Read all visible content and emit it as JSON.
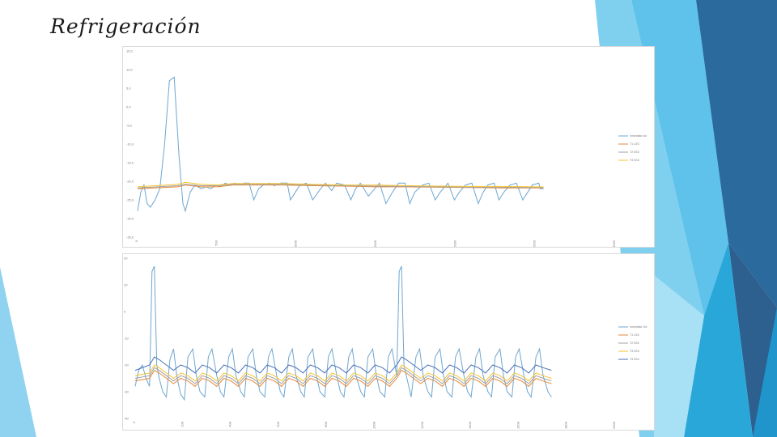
{
  "slide": {
    "title": "Refrigeración",
    "colors": {
      "deco_light": "#7fd0ee",
      "deco_mid": "#2aa7d9",
      "deco_dark": "#2a6a9c",
      "deco_navy": "#2d5f8f"
    }
  },
  "chart_data": [
    {
      "type": "line",
      "title": "",
      "xlabel": "",
      "ylabel": "",
      "ylim": [
        -35,
        15
      ],
      "xlim": [
        0,
        3000
      ],
      "y_tick_labels": [
        "15,0",
        "10,0",
        "5,0",
        "0,0",
        "-5,0",
        "-10,0",
        "-15,0",
        "-20,0",
        "-25,0",
        "-30,0",
        "-35,0"
      ],
      "x_tick_labels": [
        "0",
        "500",
        "1000",
        "1500",
        "2000",
        "2500",
        "3000"
      ],
      "legend_position": "right",
      "legend": [
        "Inmediato sol",
        "T1 LSS",
        "T2 SS2",
        "T3 SS3"
      ],
      "grid": false,
      "series": [
        {
          "name": "Inmediato sol",
          "color": "#6fa6cf",
          "x": [
            0,
            20,
            40,
            60,
            80,
            110,
            140,
            170,
            200,
            230,
            260,
            285,
            300,
            330,
            360,
            400,
            430,
            460,
            490,
            520,
            550,
            580,
            610,
            640,
            670,
            700,
            730,
            760,
            790,
            830,
            860,
            900,
            940,
            960,
            990,
            1020,
            1060,
            1100,
            1150,
            1180,
            1220,
            1250,
            1300,
            1340,
            1370,
            1400,
            1450,
            1490,
            1520,
            1560,
            1600,
            1640,
            1680,
            1710,
            1740,
            1790,
            1830,
            1870,
            1900,
            1950,
            1990,
            2020,
            2060,
            2100,
            2140,
            2170,
            2200,
            2240,
            2270,
            2300,
            2340,
            2380,
            2420,
            2450,
            2480,
            2520,
            2530,
            2550
          ],
          "y": [
            -28,
            -23,
            -21,
            -26,
            -27,
            -25,
            -22,
            -10,
            7,
            8,
            -13,
            -26,
            -28,
            -23,
            -21,
            -22,
            -21.5,
            -22,
            -21,
            -21.5,
            -20.5,
            -21,
            -20.5,
            -21,
            -20.5,
            -20.5,
            -25,
            -22,
            -21,
            -20.5,
            -21.2,
            -20.5,
            -20.5,
            -25,
            -23,
            -21,
            -20.5,
            -25,
            -22,
            -20.5,
            -22.5,
            -20.5,
            -21,
            -25,
            -22,
            -20.5,
            -24,
            -22,
            -20.5,
            -26,
            -23,
            -20.5,
            -20.5,
            -26,
            -23,
            -21,
            -20.5,
            -25,
            -23,
            -20.5,
            -25,
            -23,
            -21,
            -20.5,
            -26,
            -23,
            -21,
            -20.5,
            -25,
            -23,
            -21,
            -20.5,
            -25,
            -23,
            -21,
            -20.5,
            -22,
            -22
          ]
        },
        {
          "name": "T1 LSS",
          "color": "#e58a3a",
          "x": [
            0,
            250,
            300,
            400,
            500,
            600,
            700,
            900,
            1100,
            1300,
            1500,
            1700,
            1900,
            2100,
            2300,
            2500,
            2550
          ],
          "y": [
            -22,
            -21.5,
            -21,
            -21.5,
            -21.5,
            -21,
            -21,
            -21,
            -21.2,
            -21.3,
            -21.5,
            -21.5,
            -21.6,
            -21.7,
            -21.8,
            -21.8,
            -21.8
          ]
        },
        {
          "name": "T2 SS2",
          "color": "#a0a0a0",
          "x": [
            0,
            250,
            300,
            400,
            500,
            600,
            700,
            900,
            1100,
            1300,
            1500,
            1700,
            1900,
            2100,
            2300,
            2500,
            2550
          ],
          "y": [
            -21.8,
            -21.2,
            -20.8,
            -21.2,
            -21.2,
            -20.8,
            -20.8,
            -20.8,
            -21,
            -21.2,
            -21.3,
            -21.4,
            -21.5,
            -21.6,
            -21.6,
            -21.7,
            -21.7
          ]
        },
        {
          "name": "T3 SS3",
          "color": "#f5c431",
          "x": [
            0,
            250,
            300,
            400,
            500,
            600,
            700,
            900,
            1100,
            1300,
            1500,
            1700,
            1900,
            2100,
            2300,
            2500,
            2550
          ],
          "y": [
            -21.5,
            -20.8,
            -20.3,
            -20.8,
            -21,
            -20.6,
            -20.6,
            -20.6,
            -20.8,
            -21,
            -21,
            -21.2,
            -21.3,
            -21.4,
            -21.4,
            -21.5,
            -21.5
          ]
        }
      ]
    },
    {
      "type": "line",
      "title": "",
      "xlabel": "",
      "ylabel": "",
      "ylim": [
        -40,
        20
      ],
      "xlim": [
        0,
        2000
      ],
      "y_tick_labels": [
        "20",
        "10",
        "0",
        "-10",
        "-20",
        "-30",
        "-40"
      ],
      "x_tick_labels": [
        "0",
        "200",
        "400",
        "600",
        "800",
        "1000",
        "1200",
        "1400",
        "1600",
        "1800",
        "2000"
      ],
      "legend_position": "right",
      "legend": [
        "Inmediato Sol",
        "T1 LSS",
        "T2 SS2",
        "T3 SS3",
        "T4 SS4"
      ],
      "grid": false,
      "series": [
        {
          "name": "Inmediato Sol",
          "color": "#6fa6cf",
          "x": [
            0,
            15,
            30,
            45,
            60,
            70,
            80,
            90,
            100,
            115,
            130,
            145,
            160,
            175,
            190,
            205,
            220,
            240,
            255,
            270,
            290,
            305,
            320,
            340,
            355,
            370,
            390,
            405,
            420,
            440,
            455,
            470,
            490,
            505,
            520,
            540,
            555,
            570,
            590,
            605,
            620,
            640,
            655,
            670,
            690,
            705,
            720,
            740,
            755,
            770,
            790,
            805,
            820,
            840,
            855,
            870,
            890,
            905,
            920,
            940,
            955,
            970,
            990,
            1005,
            1020,
            1040,
            1055,
            1070,
            1090,
            1100,
            1110,
            1120,
            1135,
            1150,
            1170,
            1185,
            1200,
            1220,
            1235,
            1250,
            1270,
            1285,
            1300,
            1320,
            1335,
            1350,
            1370,
            1385,
            1400,
            1420,
            1435,
            1450,
            1470,
            1485,
            1500,
            1520,
            1535,
            1550,
            1570,
            1585,
            1600,
            1620,
            1635,
            1650,
            1670,
            1685,
            1700,
            1720,
            1735
          ],
          "y": [
            -28,
            -22,
            -20,
            -25,
            -28,
            15,
            17,
            -20,
            -25,
            -30,
            -32,
            -18,
            -14,
            -25,
            -31,
            -33,
            -17,
            -14,
            -24,
            -30,
            -32,
            -17,
            -14,
            -24,
            -30,
            -32,
            -17,
            -14,
            -24,
            -30,
            -32,
            -17,
            -14,
            -24,
            -30,
            -32,
            -17,
            -14,
            -24,
            -30,
            -32,
            -17,
            -14,
            -24,
            -30,
            -32,
            -17,
            -14,
            -24,
            -30,
            -32,
            -17,
            -14,
            -24,
            -30,
            -32,
            -17,
            -14,
            -24,
            -30,
            -32,
            -17,
            -14,
            -24,
            -30,
            -32,
            -17,
            -14,
            -24,
            15,
            17,
            -20,
            -26,
            -32,
            -17,
            -14,
            -24,
            -30,
            -32,
            -17,
            -14,
            -24,
            -30,
            -32,
            -17,
            -14,
            -24,
            -30,
            -32,
            -17,
            -14,
            -24,
            -30,
            -32,
            -17,
            -14,
            -24,
            -30,
            -32,
            -17,
            -14,
            -24,
            -30,
            -32,
            -17,
            -14,
            -24,
            -30,
            -32
          ]
        },
        {
          "name": "T1 LSS",
          "color": "#e58a3a",
          "x": [
            0,
            60,
            80,
            100,
            130,
            160,
            190,
            220,
            250,
            280,
            310,
            340,
            370,
            400,
            430,
            460,
            490,
            520,
            550,
            580,
            610,
            640,
            670,
            700,
            730,
            760,
            790,
            820,
            850,
            880,
            910,
            940,
            970,
            1000,
            1030,
            1060,
            1090,
            1110,
            1130,
            1160,
            1190,
            1220,
            1250,
            1280,
            1310,
            1340,
            1370,
            1400,
            1430,
            1460,
            1490,
            1520,
            1550,
            1580,
            1610,
            1640,
            1670,
            1700,
            1735
          ],
          "y": [
            -26,
            -25,
            -22,
            -23,
            -25,
            -27,
            -25,
            -26,
            -28,
            -25,
            -26,
            -28,
            -25,
            -26,
            -28,
            -25,
            -26,
            -28,
            -25,
            -26,
            -28,
            -25,
            -26,
            -28,
            -25,
            -26,
            -28,
            -25,
            -26,
            -28,
            -25,
            -26,
            -28,
            -25,
            -26,
            -28,
            -25,
            -22,
            -23,
            -25,
            -27,
            -25,
            -26,
            -28,
            -25,
            -26,
            -28,
            -25,
            -26,
            -28,
            -25,
            -26,
            -28,
            -25,
            -26,
            -28,
            -25,
            -26,
            -27
          ]
        },
        {
          "name": "T2 SS2",
          "color": "#a0a0a0",
          "x": [
            0,
            60,
            80,
            100,
            130,
            160,
            190,
            220,
            250,
            280,
            310,
            340,
            370,
            400,
            430,
            460,
            490,
            520,
            550,
            580,
            610,
            640,
            670,
            700,
            730,
            760,
            790,
            820,
            850,
            880,
            910,
            940,
            970,
            1000,
            1030,
            1060,
            1090,
            1110,
            1130,
            1160,
            1190,
            1220,
            1250,
            1280,
            1310,
            1340,
            1370,
            1400,
            1430,
            1460,
            1490,
            1520,
            1550,
            1580,
            1610,
            1640,
            1670,
            1700,
            1735
          ],
          "y": [
            -25,
            -24,
            -21,
            -22,
            -24,
            -26,
            -24,
            -25,
            -27,
            -24,
            -25,
            -27,
            -24,
            -25,
            -27,
            -24,
            -25,
            -27,
            -24,
            -25,
            -27,
            -24,
            -25,
            -27,
            -24,
            -25,
            -27,
            -24,
            -25,
            -27,
            -24,
            -25,
            -27,
            -24,
            -25,
            -27,
            -24,
            -21,
            -22,
            -24,
            -26,
            -24,
            -25,
            -27,
            -24,
            -25,
            -27,
            -24,
            -25,
            -27,
            -24,
            -25,
            -27,
            -24,
            -25,
            -27,
            -24,
            -25,
            -26
          ]
        },
        {
          "name": "T3 SS3",
          "color": "#f5c431",
          "x": [
            0,
            60,
            80,
            100,
            130,
            160,
            190,
            220,
            250,
            280,
            310,
            340,
            370,
            400,
            430,
            460,
            490,
            520,
            550,
            580,
            610,
            640,
            670,
            700,
            730,
            760,
            790,
            820,
            850,
            880,
            910,
            940,
            970,
            1000,
            1030,
            1060,
            1090,
            1110,
            1130,
            1160,
            1190,
            1220,
            1250,
            1280,
            1310,
            1340,
            1370,
            1400,
            1430,
            1460,
            1490,
            1520,
            1550,
            1580,
            1610,
            1640,
            1670,
            1700,
            1735
          ],
          "y": [
            -24,
            -23,
            -20,
            -21,
            -23,
            -25,
            -23,
            -24,
            -26,
            -23,
            -24,
            -26,
            -23,
            -24,
            -26,
            -23,
            -24,
            -26,
            -23,
            -24,
            -26,
            -23,
            -24,
            -26,
            -23,
            -24,
            -26,
            -23,
            -24,
            -26,
            -23,
            -24,
            -26,
            -23,
            -24,
            -26,
            -23,
            -20,
            -21,
            -23,
            -25,
            -23,
            -24,
            -26,
            -23,
            -24,
            -26,
            -23,
            -24,
            -26,
            -23,
            -24,
            -26,
            -23,
            -24,
            -26,
            -23,
            -24,
            -25
          ]
        },
        {
          "name": "T4 SS4",
          "color": "#4a72b8",
          "x": [
            0,
            60,
            80,
            100,
            130,
            160,
            190,
            220,
            250,
            280,
            310,
            340,
            370,
            400,
            430,
            460,
            490,
            520,
            550,
            580,
            610,
            640,
            670,
            700,
            730,
            760,
            790,
            820,
            850,
            880,
            910,
            940,
            970,
            1000,
            1030,
            1060,
            1090,
            1110,
            1130,
            1160,
            1190,
            1220,
            1250,
            1280,
            1310,
            1340,
            1370,
            1400,
            1430,
            1460,
            1490,
            1520,
            1550,
            1580,
            1610,
            1640,
            1670,
            1700,
            1735
          ],
          "y": [
            -22,
            -20,
            -17,
            -18,
            -20,
            -22,
            -20,
            -21,
            -23,
            -20,
            -21,
            -23,
            -20,
            -21,
            -23,
            -20,
            -21,
            -23,
            -20,
            -21,
            -23,
            -20,
            -21,
            -23,
            -20,
            -21,
            -23,
            -20,
            -21,
            -23,
            -20,
            -21,
            -23,
            -20,
            -21,
            -23,
            -20,
            -17,
            -18,
            -20,
            -22,
            -20,
            -21,
            -23,
            -20,
            -21,
            -23,
            -20,
            -21,
            -23,
            -20,
            -21,
            -23,
            -20,
            -21,
            -23,
            -20,
            -21,
            -22
          ]
        }
      ]
    }
  ]
}
